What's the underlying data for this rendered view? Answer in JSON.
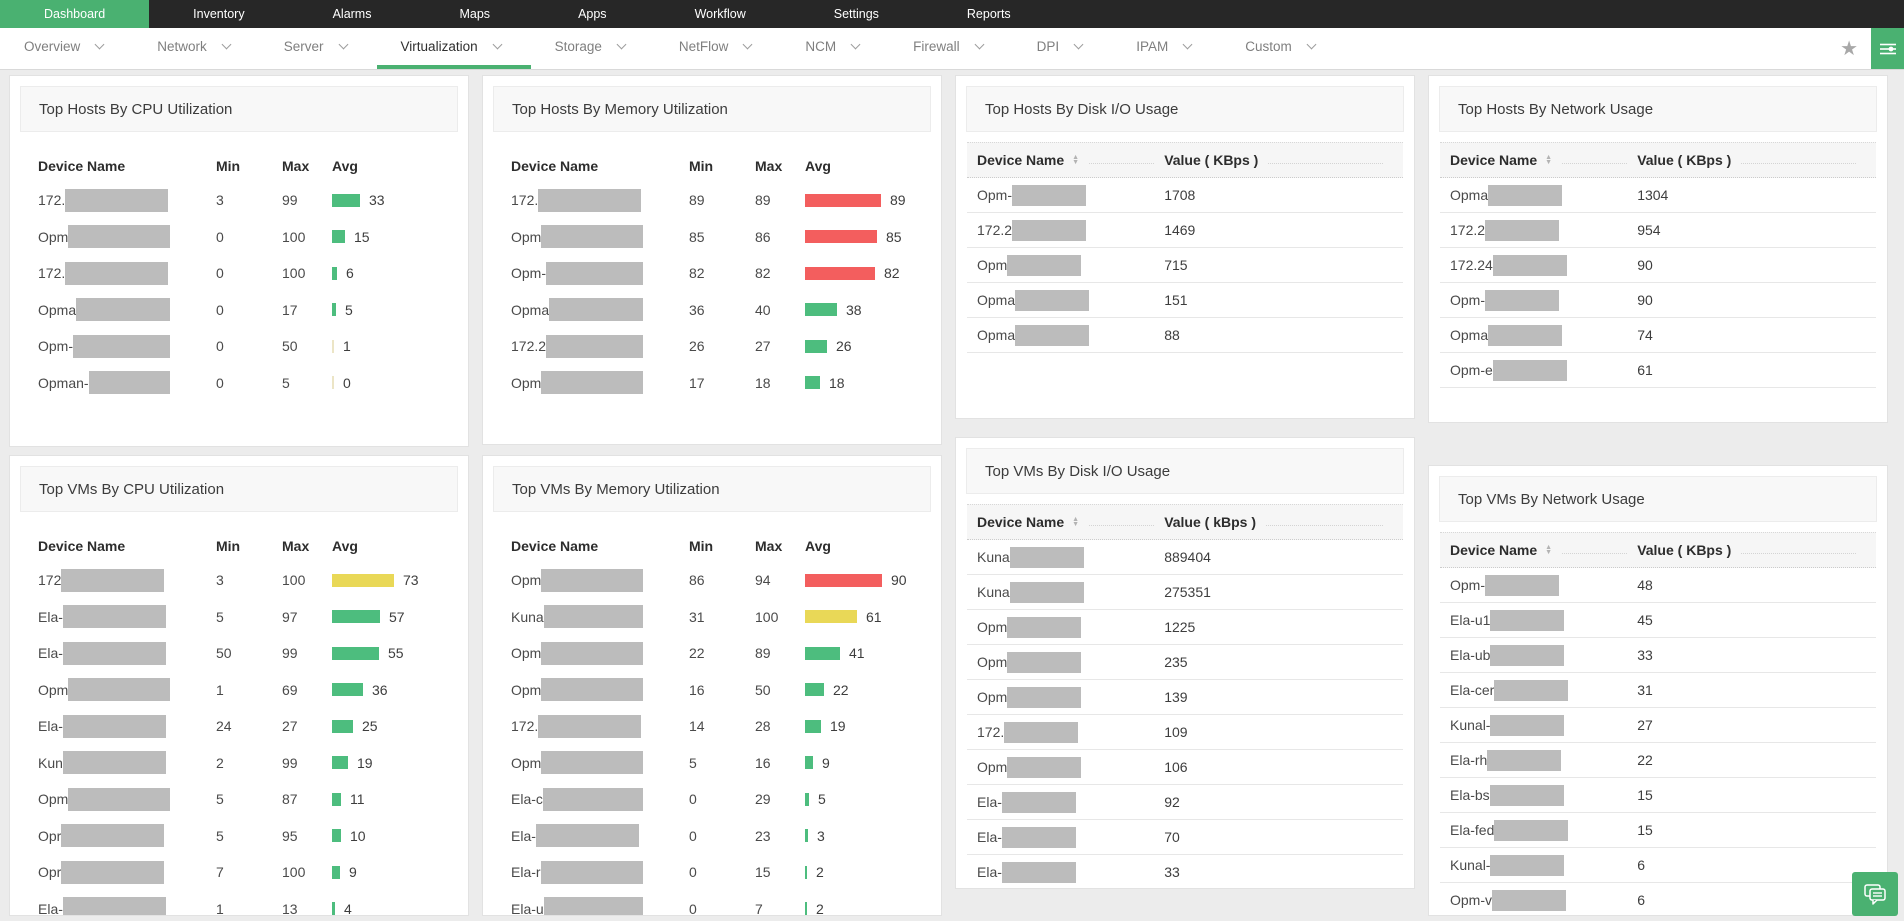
{
  "colors": {
    "accent": "#4ab171",
    "bar_green": "#4dbd7e",
    "bar_yellow": "#e9d857",
    "bar_red": "#f35e5e",
    "redact": "#bcbcbc"
  },
  "icons": {
    "subnav_chevron": "chevron-down-icon",
    "favorite": "star-icon",
    "filter": "filter-sliders-icon",
    "sort": "sort-updown-icon",
    "chat": "chat-bubble-icon"
  },
  "topnav": {
    "items": [
      {
        "label": "Dashboard",
        "active": true
      },
      {
        "label": "Inventory"
      },
      {
        "label": "Alarms"
      },
      {
        "label": "Maps"
      },
      {
        "label": "Apps"
      },
      {
        "label": "Workflow"
      },
      {
        "label": "Settings"
      },
      {
        "label": "Reports"
      }
    ]
  },
  "subnav": {
    "items": [
      {
        "label": "Overview"
      },
      {
        "label": "Network"
      },
      {
        "label": "Server"
      },
      {
        "label": "Virtualization",
        "active": true
      },
      {
        "label": "Storage"
      },
      {
        "label": "NetFlow"
      },
      {
        "label": "NCM"
      },
      {
        "label": "Firewall"
      },
      {
        "label": "DPI"
      },
      {
        "label": "IPAM"
      },
      {
        "label": "Custom"
      }
    ]
  },
  "widgets": {
    "hosts_cpu": {
      "title": "Top Hosts By CPU Utilization",
      "kind": "bars",
      "columns": [
        "Device Name",
        "Min",
        "Max",
        "Avg"
      ],
      "rows": [
        {
          "name": "172.",
          "min": "3",
          "max": "99",
          "avg": 33,
          "level": "green"
        },
        {
          "name": "Opm",
          "min": "0",
          "max": "100",
          "avg": 15,
          "level": "green"
        },
        {
          "name": "172.",
          "min": "0",
          "max": "100",
          "avg": 6,
          "level": "green"
        },
        {
          "name": "Opma",
          "min": "0",
          "max": "17",
          "avg": 5,
          "level": "green"
        },
        {
          "name": "Opm-",
          "min": "0",
          "max": "50",
          "avg": 1,
          "level": "green"
        },
        {
          "name": "Opman-",
          "min": "0",
          "max": "5",
          "avg": 0,
          "level": "green"
        }
      ]
    },
    "hosts_mem": {
      "title": "Top Hosts By Memory Utilization",
      "kind": "bars",
      "columns": [
        "Device Name",
        "Min",
        "Max",
        "Avg"
      ],
      "rows": [
        {
          "name": "172.",
          "min": "89",
          "max": "89",
          "avg": 89,
          "level": "red"
        },
        {
          "name": "Opm",
          "min": "85",
          "max": "86",
          "avg": 85,
          "level": "red"
        },
        {
          "name": "Opm-",
          "min": "82",
          "max": "82",
          "avg": 82,
          "level": "red"
        },
        {
          "name": "Opma",
          "min": "36",
          "max": "40",
          "avg": 38,
          "level": "green"
        },
        {
          "name": "172.2",
          "min": "26",
          "max": "27",
          "avg": 26,
          "level": "green"
        },
        {
          "name": "Opm",
          "min": "17",
          "max": "18",
          "avg": 18,
          "level": "green"
        }
      ]
    },
    "hosts_disk": {
      "title": "Top Hosts By Disk I/O Usage",
      "kind": "values",
      "columns": [
        "Device Name",
        "Value ( KBps )"
      ],
      "rows": [
        {
          "name": "Opm-",
          "value": "1708"
        },
        {
          "name": "172.2",
          "value": "1469"
        },
        {
          "name": "Opm",
          "value": "715"
        },
        {
          "name": "Opma",
          "value": "151"
        },
        {
          "name": "Opma",
          "value": "88"
        }
      ]
    },
    "hosts_net": {
      "title": "Top Hosts By Network Usage",
      "kind": "values",
      "columns": [
        "Device Name",
        "Value ( KBps )"
      ],
      "rows": [
        {
          "name": "Opma",
          "value": "1304"
        },
        {
          "name": "172.2",
          "value": "954"
        },
        {
          "name": "172.24",
          "value": "90"
        },
        {
          "name": "Opm-",
          "value": "90"
        },
        {
          "name": "Opma",
          "value": "74"
        },
        {
          "name": "Opm-e",
          "value": "61"
        }
      ]
    },
    "vms_cpu": {
      "title": "Top VMs By CPU Utilization",
      "kind": "bars",
      "columns": [
        "Device Name",
        "Min",
        "Max",
        "Avg"
      ],
      "rows": [
        {
          "name": "172",
          "min": "3",
          "max": "100",
          "avg": 73,
          "level": "yellow"
        },
        {
          "name": "Ela-",
          "min": "5",
          "max": "97",
          "avg": 57,
          "level": "green"
        },
        {
          "name": "Ela-",
          "min": "50",
          "max": "99",
          "avg": 55,
          "level": "green"
        },
        {
          "name": "Opm",
          "min": "1",
          "max": "69",
          "avg": 36,
          "level": "green"
        },
        {
          "name": "Ela-",
          "min": "24",
          "max": "27",
          "avg": 25,
          "level": "green"
        },
        {
          "name": "Kun",
          "min": "2",
          "max": "99",
          "avg": 19,
          "level": "green"
        },
        {
          "name": "Opm",
          "min": "5",
          "max": "87",
          "avg": 11,
          "level": "green"
        },
        {
          "name": "Opr",
          "min": "5",
          "max": "95",
          "avg": 10,
          "level": "green"
        },
        {
          "name": "Opr",
          "min": "7",
          "max": "100",
          "avg": 9,
          "level": "green"
        },
        {
          "name": "Ela-",
          "min": "1",
          "max": "13",
          "avg": 4,
          "level": "green"
        }
      ]
    },
    "vms_mem": {
      "title": "Top VMs By Memory Utilization",
      "kind": "bars",
      "columns": [
        "Device Name",
        "Min",
        "Max",
        "Avg"
      ],
      "rows": [
        {
          "name": "Opm",
          "min": "86",
          "max": "94",
          "avg": 90,
          "level": "red"
        },
        {
          "name": "Kuna",
          "min": "31",
          "max": "100",
          "avg": 61,
          "level": "yellow"
        },
        {
          "name": "Opm",
          "min": "22",
          "max": "89",
          "avg": 41,
          "level": "green"
        },
        {
          "name": "Opm",
          "min": "16",
          "max": "50",
          "avg": 22,
          "level": "green"
        },
        {
          "name": "172.",
          "min": "14",
          "max": "28",
          "avg": 19,
          "level": "green"
        },
        {
          "name": "Opm",
          "min": "5",
          "max": "16",
          "avg": 9,
          "level": "green"
        },
        {
          "name": "Ela-c",
          "min": "0",
          "max": "29",
          "avg": 5,
          "level": "green"
        },
        {
          "name": "Ela-",
          "min": "0",
          "max": "23",
          "avg": 3,
          "level": "green"
        },
        {
          "name": "Ela-r",
          "min": "0",
          "max": "15",
          "avg": 2,
          "level": "green"
        },
        {
          "name": "Ela-u",
          "min": "0",
          "max": "7",
          "avg": 2,
          "level": "green"
        }
      ]
    },
    "vms_disk": {
      "title": "Top VMs By Disk I/O Usage",
      "kind": "values",
      "columns": [
        "Device Name",
        "Value ( kBps )"
      ],
      "rows": [
        {
          "name": "Kuna",
          "value": "889404"
        },
        {
          "name": "Kuna",
          "value": "275351"
        },
        {
          "name": "Opm",
          "value": "1225"
        },
        {
          "name": "Opm",
          "value": "235"
        },
        {
          "name": "Opm",
          "value": "139"
        },
        {
          "name": "172.",
          "value": "109"
        },
        {
          "name": "Opm",
          "value": "106"
        },
        {
          "name": "Ela-",
          "value": "92"
        },
        {
          "name": "Ela-",
          "value": "70"
        },
        {
          "name": "Ela-",
          "value": "33"
        }
      ]
    },
    "vms_net": {
      "title": "Top VMs By Network Usage",
      "kind": "values",
      "columns": [
        "Device Name",
        "Value ( KBps )"
      ],
      "rows": [
        {
          "name": "Opm-",
          "value": "48"
        },
        {
          "name": "Ela-u1",
          "value": "45"
        },
        {
          "name": "Ela-ub",
          "value": "33"
        },
        {
          "name": "Ela-cer",
          "value": "31"
        },
        {
          "name": "Kunal-",
          "value": "27"
        },
        {
          "name": "Ela-rh",
          "value": "22"
        },
        {
          "name": "Ela-bs",
          "value": "15"
        },
        {
          "name": "Ela-fed",
          "value": "15"
        },
        {
          "name": "Kunal-",
          "value": "6"
        },
        {
          "name": "Opm-v",
          "value": "6"
        }
      ]
    }
  }
}
